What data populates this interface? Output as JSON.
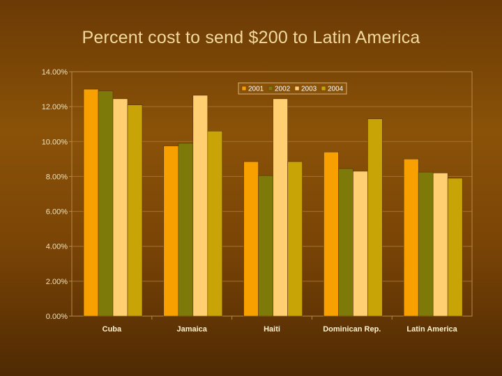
{
  "slide": {
    "title": "Percent cost to send $200 to Latin America"
  },
  "chart_data": {
    "type": "bar",
    "title": "",
    "xlabel": "",
    "ylabel": "",
    "categories": [
      "Cuba",
      "Jamaica",
      "Haiti",
      "Dominican Rep.",
      "Latin America"
    ],
    "series": [
      {
        "name": "2001",
        "color": "#f7a000",
        "values": [
          13.0,
          9.75,
          8.85,
          9.4,
          9.0
        ]
      },
      {
        "name": "2002",
        "color": "#7d7a0a",
        "values": [
          12.9,
          9.9,
          8.05,
          8.45,
          8.25
        ]
      },
      {
        "name": "2003",
        "color": "#ffcf72",
        "values": [
          12.45,
          12.65,
          12.45,
          8.3,
          8.2
        ]
      },
      {
        "name": "2004",
        "color": "#c9a406",
        "values": [
          12.1,
          10.6,
          8.85,
          11.3,
          7.9
        ]
      }
    ],
    "ylim": [
      0,
      14
    ],
    "yticks": [
      "0.00%",
      "2.00%",
      "4.00%",
      "6.00%",
      "8.00%",
      "10.00%",
      "12.00%",
      "14.00%"
    ],
    "grid": true,
    "legend_position": "top-right"
  }
}
